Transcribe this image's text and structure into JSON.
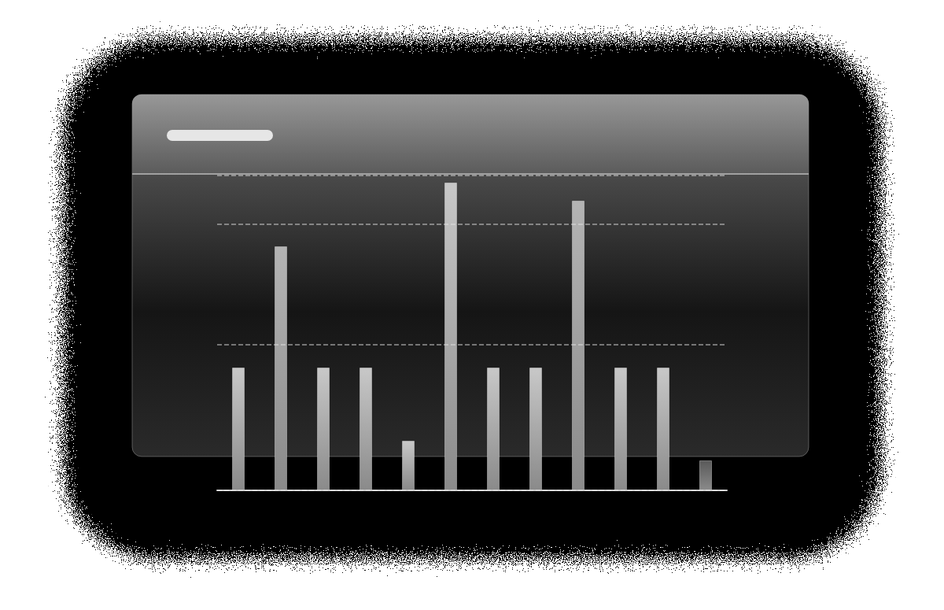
{
  "chart_data": {
    "type": "bar",
    "categories": [
      null,
      null,
      null,
      null,
      null,
      null,
      null,
      null,
      null,
      null,
      null,
      null
    ],
    "values": [
      156,
      310,
      156,
      156,
      63,
      391,
      156,
      156,
      368,
      156,
      156,
      38
    ],
    "colors": [
      "#c8c8c8",
      "#b4b4b4",
      "#c8c8c8",
      "#c8c8c8",
      "#c8c8c8",
      "#c8c8c8",
      "#c8c8c8",
      "#c8c8c8",
      "#b4b4b4",
      "#c8c8c8",
      "#c8c8c8",
      "#5a5a5a"
    ],
    "ylim": [
      0,
      400
    ],
    "yticks": [
      0,
      185,
      338,
      400
    ],
    "grid": true,
    "tick_labels": false
  }
}
